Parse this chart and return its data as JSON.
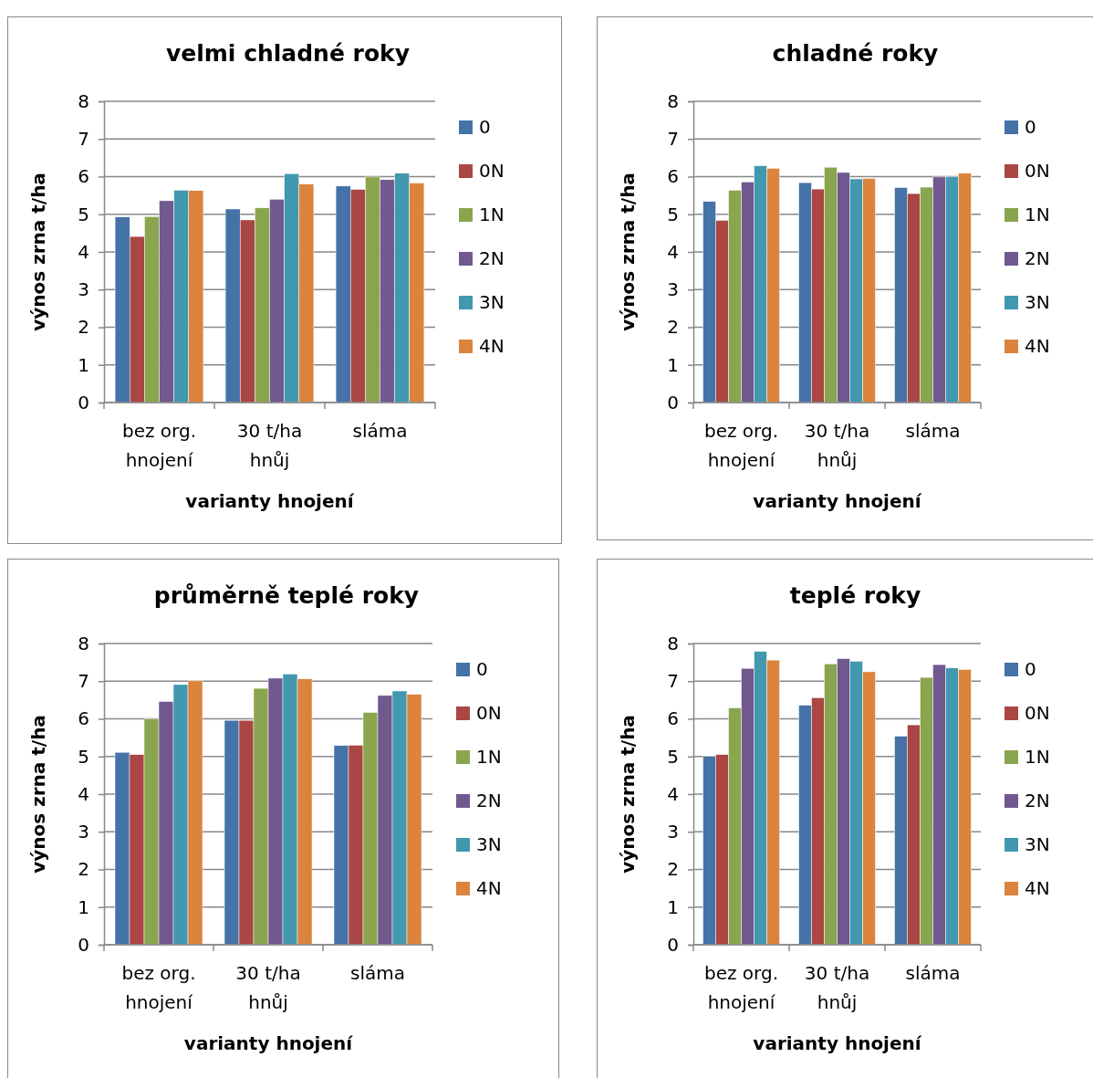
{
  "chart_data": [
    {
      "type": "bar",
      "title": "velmi chladné roky",
      "xlabel": "varianty hnojení",
      "ylabel": "výnos zrna t/ha",
      "categories": [
        "bez org. hnojení",
        "30 t/ha hnůj",
        "sláma"
      ],
      "ylim": [
        0,
        8
      ],
      "yticks": [
        0,
        1,
        2,
        3,
        4,
        5,
        6,
        7,
        8
      ],
      "grid": "y",
      "legend": "right",
      "series": [
        {
          "name": "0",
          "color": "#4572a7",
          "values": [
            4.93,
            5.14,
            5.75
          ]
        },
        {
          "name": "0N",
          "color": "#aa4643",
          "values": [
            4.41,
            4.85,
            5.66
          ]
        },
        {
          "name": "1N",
          "color": "#89a54e",
          "values": [
            4.94,
            5.17,
            5.99
          ]
        },
        {
          "name": "2N",
          "color": "#71588f",
          "values": [
            5.36,
            5.4,
            5.92
          ]
        },
        {
          "name": "3N",
          "color": "#4198af",
          "values": [
            5.64,
            6.08,
            6.09
          ]
        },
        {
          "name": "4N",
          "color": "#db843d",
          "values": [
            5.63,
            5.8,
            5.83
          ]
        }
      ]
    },
    {
      "type": "bar",
      "title": "chladné roky",
      "xlabel": "varianty hnojení",
      "ylabel": "výnos zrna t/ha",
      "categories": [
        "bez org. hnojení",
        "30 t/ha hnůj",
        "sláma"
      ],
      "ylim": [
        0,
        8
      ],
      "yticks": [
        0,
        1,
        2,
        3,
        4,
        5,
        6,
        7,
        8
      ],
      "grid": "y",
      "legend": "right",
      "series": [
        {
          "name": "0",
          "color": "#4572a7",
          "values": [
            5.34,
            5.84,
            5.71
          ]
        },
        {
          "name": "0N",
          "color": "#aa4643",
          "values": [
            4.84,
            5.67,
            5.55
          ]
        },
        {
          "name": "1N",
          "color": "#89a54e",
          "values": [
            5.64,
            6.25,
            5.72
          ]
        },
        {
          "name": "2N",
          "color": "#71588f",
          "values": [
            5.86,
            6.11,
            5.99
          ]
        },
        {
          "name": "3N",
          "color": "#4198af",
          "values": [
            6.29,
            5.94,
            6.0
          ]
        },
        {
          "name": "4N",
          "color": "#db843d",
          "values": [
            6.22,
            5.95,
            6.09
          ]
        }
      ]
    },
    {
      "type": "bar",
      "title": "průměrně teplé roky",
      "xlabel": "varianty hnojení",
      "ylabel": "výnos zrna t/ha",
      "categories": [
        "bez org. hnojení",
        "30 t/ha hnůj",
        "sláma"
      ],
      "ylim": [
        0,
        8
      ],
      "yticks": [
        0,
        1,
        2,
        3,
        4,
        5,
        6,
        7,
        8
      ],
      "grid": "y",
      "legend": "right",
      "series": [
        {
          "name": "0",
          "color": "#4572a7",
          "values": [
            5.11,
            5.96,
            5.29
          ]
        },
        {
          "name": "0N",
          "color": "#aa4643",
          "values": [
            5.05,
            5.96,
            5.3
          ]
        },
        {
          "name": "1N",
          "color": "#89a54e",
          "values": [
            6.0,
            6.81,
            6.17
          ]
        },
        {
          "name": "2N",
          "color": "#71588f",
          "values": [
            6.46,
            7.08,
            6.62
          ]
        },
        {
          "name": "3N",
          "color": "#4198af",
          "values": [
            6.91,
            7.19,
            6.74
          ]
        },
        {
          "name": "4N",
          "color": "#db843d",
          "values": [
            7.01,
            7.06,
            6.65
          ]
        }
      ]
    },
    {
      "type": "bar",
      "title": "teplé roky",
      "xlabel": "varianty hnojení",
      "ylabel": "výnos zrna t/ha",
      "categories": [
        "bez org. hnojení",
        "30 t/ha hnůj",
        "sláma"
      ],
      "ylim": [
        0,
        8
      ],
      "yticks": [
        0,
        1,
        2,
        3,
        4,
        5,
        6,
        7,
        8
      ],
      "grid": "y",
      "legend": "right",
      "series": [
        {
          "name": "0",
          "color": "#4572a7",
          "values": [
            5.0,
            6.36,
            5.54
          ]
        },
        {
          "name": "0N",
          "color": "#aa4643",
          "values": [
            5.05,
            6.56,
            5.84
          ]
        },
        {
          "name": "1N",
          "color": "#89a54e",
          "values": [
            6.29,
            7.46,
            7.1
          ]
        },
        {
          "name": "2N",
          "color": "#71588f",
          "values": [
            7.34,
            7.6,
            7.44
          ]
        },
        {
          "name": "3N",
          "color": "#4198af",
          "values": [
            7.79,
            7.53,
            7.35
          ]
        },
        {
          "name": "4N",
          "color": "#db843d",
          "values": [
            7.56,
            7.25,
            7.31
          ]
        }
      ]
    }
  ]
}
